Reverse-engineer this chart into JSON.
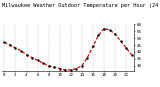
{
  "title": "Milwaukee Weather Outdoor Temperature per Hour (24 Hours)",
  "hours": [
    0,
    1,
    2,
    3,
    4,
    5,
    6,
    7,
    8,
    9,
    10,
    11,
    12,
    13,
    14,
    15,
    16,
    17,
    18,
    19,
    20,
    21,
    22,
    23
  ],
  "temps": [
    47,
    45,
    43,
    41,
    38,
    36,
    34,
    32,
    30,
    29,
    28,
    27,
    27,
    28,
    30,
    36,
    44,
    52,
    57,
    56,
    53,
    48,
    43,
    38
  ],
  "line_color": "#dd0000",
  "marker_color": "#000000",
  "bg_color": "#ffffff",
  "ytick_vals": [
    30,
    35,
    40,
    45,
    50,
    55,
    60
  ],
  "ytick_labels": [
    "30",
    "35",
    "40",
    "45",
    "50",
    "55",
    "60"
  ],
  "xtick_vals": [
    0,
    2,
    4,
    6,
    8,
    10,
    12,
    14,
    16,
    18,
    20,
    22
  ],
  "xtick_labels": [
    "0",
    "2",
    "4",
    "6",
    "8",
    "10",
    "12",
    "14",
    "16",
    "18",
    "20",
    "22"
  ],
  "ylim": [
    26,
    60
  ],
  "xlim": [
    -0.5,
    23.5
  ],
  "grid_color": "#999999",
  "title_fontsize": 3.8,
  "tick_fontsize": 3.0,
  "linewidth": 0.9,
  "markersize": 1.5
}
